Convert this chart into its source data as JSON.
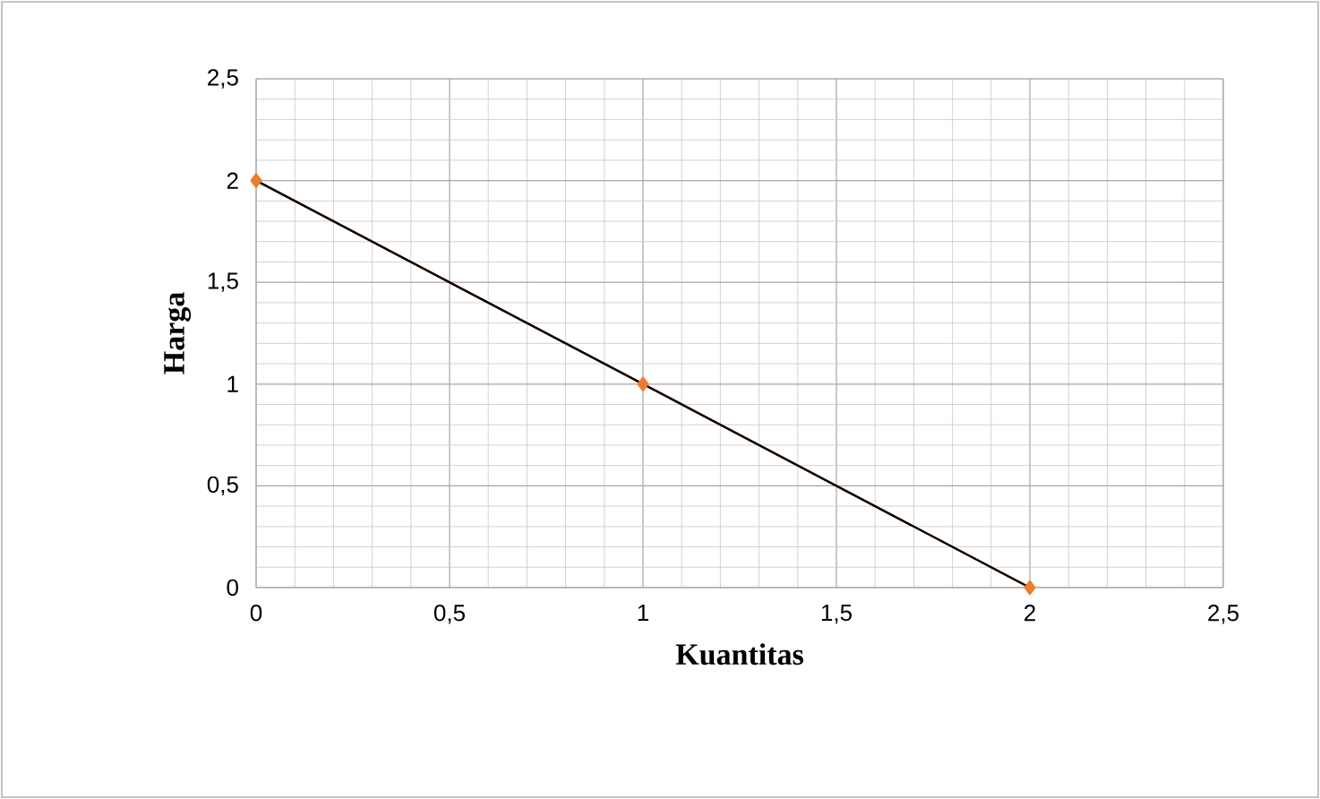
{
  "chart_data": {
    "type": "line",
    "xlabel": "Kuantitas",
    "ylabel": "Harga",
    "xlim": [
      0,
      2.5
    ],
    "ylim": [
      0,
      2.5
    ],
    "xticks": [
      0,
      {
        "value": 0.5,
        "label": "0,5"
      },
      1,
      {
        "value": 1.5,
        "label": "1,5"
      },
      2,
      {
        "value": 2.5,
        "label": "2,5"
      }
    ],
    "yticks": [
      0,
      {
        "value": 0.5,
        "label": "0,5"
      },
      1,
      {
        "value": 1.5,
        "label": "1,5"
      },
      2,
      {
        "value": 2.5,
        "label": "2,5"
      }
    ],
    "grid": true,
    "series": [
      {
        "color": "#ed7d31",
        "marker": "diamond",
        "line_style": "solid",
        "x": [
          0,
          1,
          2
        ],
        "values": [
          2,
          1,
          0
        ]
      },
      {
        "color": "#000000",
        "marker": "none",
        "line_style": "solid",
        "x": [
          0,
          2
        ],
        "values": [
          2,
          0
        ]
      }
    ]
  }
}
